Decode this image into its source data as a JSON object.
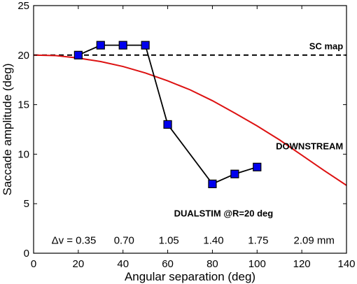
{
  "chart_data": {
    "type": "line",
    "xlabel": "Angular separation (deg)",
    "ylabel": "Saccade amplitude (deg)",
    "xlim": [
      0,
      140
    ],
    "ylim": [
      0,
      25
    ],
    "xticks": [
      0,
      20,
      40,
      60,
      80,
      100,
      120,
      140
    ],
    "yticks": [
      0,
      5,
      10,
      15,
      20,
      25
    ],
    "grid": false,
    "series": [
      {
        "name": "SC map",
        "style": "dashed",
        "color": "#000000",
        "x": [
          0,
          140
        ],
        "y": [
          20,
          20
        ]
      },
      {
        "name": "DOWNSTREAM",
        "style": "solid",
        "color": "#dd1111",
        "x": [
          0,
          10,
          20,
          30,
          40,
          50,
          60,
          70,
          80,
          90,
          100,
          110,
          120,
          130,
          140
        ],
        "y": [
          20.0,
          19.95,
          19.7,
          19.35,
          18.85,
          18.2,
          17.4,
          16.5,
          15.4,
          14.15,
          12.85,
          11.45,
          9.9,
          8.35,
          6.85
        ]
      },
      {
        "name": "DUALSTIM @R=20 deg",
        "style": "markers",
        "color": "#000000",
        "marker_color": "#0000ee",
        "x": [
          20,
          30,
          40,
          50,
          60,
          80,
          90,
          100
        ],
        "y": [
          20,
          21,
          21,
          21,
          13,
          7,
          8,
          8.7
        ]
      }
    ],
    "annotations": {
      "sc_map": "SC map",
      "downstream": "DOWNSTREAM",
      "dualstim": "DUALSTIM @R=20 deg",
      "delta_v_prefix": "Δv = 0.35",
      "delta_v_values": [
        {
          "x": 59,
          "text": "0.70"
        },
        {
          "x": 88,
          "text": "1.05"
        },
        {
          "x": 117,
          "text": "1.40"
        },
        {
          "x": 146,
          "text": "1.75"
        },
        {
          "x": 175,
          "text": "2.09 mm"
        }
      ]
    }
  }
}
